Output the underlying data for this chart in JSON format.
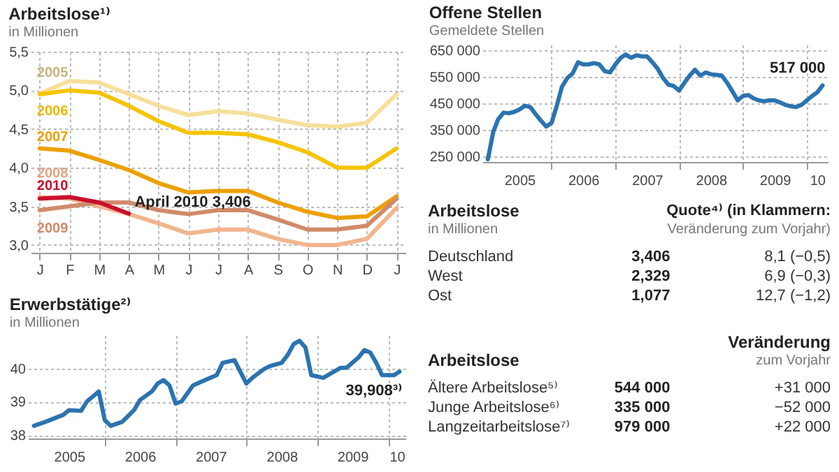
{
  "chart_data": [
    {
      "type": "line",
      "title": "Arbeitslose¹⁾",
      "subtitle": "in Millionen",
      "categories": [
        "J",
        "F",
        "M",
        "A",
        "M",
        "J",
        "J",
        "A",
        "S",
        "O",
        "N",
        "D",
        "J"
      ],
      "ylim": [
        2.9,
        5.5
      ],
      "yticks": [
        {
          "value": 3,
          "label": "3,0"
        },
        {
          "value": 3.5,
          "label": "3,5"
        },
        {
          "value": 4,
          "label": "4,0"
        },
        {
          "value": 4.5,
          "label": "4,5"
        },
        {
          "value": 5,
          "label": "5,0"
        },
        {
          "value": 5.5,
          "label": "5,5"
        }
      ],
      "grid": true,
      "marker": "none",
      "series": [
        {
          "name": "2005",
          "color": "#f6e09a",
          "values": [
            4.96,
            5.12,
            5.1,
            4.95,
            4.8,
            4.68,
            4.73,
            4.7,
            4.62,
            4.55,
            4.53,
            4.58,
            4.95
          ]
        },
        {
          "name": "2006",
          "color": "#f5c400",
          "values": [
            4.95,
            5.0,
            4.97,
            4.8,
            4.6,
            4.45,
            4.45,
            4.43,
            4.33,
            4.2,
            4.0,
            4.0,
            4.25
          ]
        },
        {
          "name": "2007",
          "color": "#eca000",
          "values": [
            4.25,
            4.22,
            4.1,
            3.97,
            3.8,
            3.68,
            3.7,
            3.7,
            3.55,
            3.43,
            3.35,
            3.37,
            3.63
          ]
        },
        {
          "name": "2008",
          "color": "#f2b58e",
          "values": [
            3.62,
            3.6,
            3.5,
            3.4,
            3.28,
            3.15,
            3.2,
            3.2,
            3.08,
            3.0,
            3.0,
            3.08,
            3.48
          ]
        },
        {
          "name": "2009",
          "color": "#cf8b6a",
          "values": [
            3.45,
            3.5,
            3.55,
            3.55,
            3.45,
            3.4,
            3.45,
            3.45,
            3.33,
            3.2,
            3.2,
            3.25,
            3.6
          ]
        },
        {
          "name": "2010",
          "color": "#c8102e",
          "values": [
            3.6,
            3.62,
            3.55,
            3.406,
            null,
            null,
            null,
            null,
            null,
            null,
            null,
            null,
            null
          ]
        }
      ],
      "annotations": [
        {
          "text": "April 2010 3,406",
          "x": "A",
          "y": 3.406
        }
      ]
    },
    {
      "type": "line",
      "title": "Erwerbstätige²⁾",
      "subtitle": "in Millionen",
      "xlim": [
        "2004-12",
        "2010-04"
      ],
      "ylim": [
        37.9,
        41.0
      ],
      "yticks": [
        38,
        39,
        40
      ],
      "grid": true,
      "marker": "none",
      "xticks": [
        {
          "value": "2005-07",
          "label": "2005"
        },
        {
          "value": "2006-01",
          "label": null
        },
        {
          "value": "2006-07",
          "label": "2006"
        },
        {
          "value": "2007-01",
          "label": null
        },
        {
          "value": "2007-07",
          "label": "2007"
        },
        {
          "value": "2008-01",
          "label": null
        },
        {
          "value": "2008-07",
          "label": "2008"
        },
        {
          "value": "2009-01",
          "label": null
        },
        {
          "value": "2009-07",
          "label": "2009"
        },
        {
          "value": "2010-01",
          "label": null
        },
        {
          "value": "2010-02-15",
          "label": "10"
        }
      ],
      "x": [
        "2005-01",
        "2005-03",
        "2005-06",
        "2005-07",
        "2005-09",
        "2005-10",
        "2005-12",
        "2006-01",
        "2006-02",
        "2006-04",
        "2006-06",
        "2006-07",
        "2006-09",
        "2006-10",
        "2006-11",
        "2006-12",
        "2007-01",
        "2007-02",
        "2007-04",
        "2007-06",
        "2007-08",
        "2007-09",
        "2007-11",
        "2008-01",
        "2008-02",
        "2008-04",
        "2008-05",
        "2008-07",
        "2008-08",
        "2008-09",
        "2008-10",
        "2008-11",
        "2008-12",
        "2009-02",
        "2009-04",
        "2009-05",
        "2009-06",
        "2009-08",
        "2009-09",
        "2009-10",
        "2009-11",
        "2009-12",
        "2010-02",
        "2010-03"
      ],
      "series": [
        {
          "color": "#2b73b0",
          "values": [
            38.28,
            38.4,
            38.61,
            38.75,
            38.73,
            39.01,
            39.31,
            38.45,
            38.28,
            38.4,
            38.75,
            39.05,
            39.31,
            39.55,
            39.65,
            39.49,
            38.95,
            39.01,
            39.49,
            39.65,
            39.8,
            40.17,
            40.25,
            39.55,
            39.72,
            39.98,
            40.07,
            40.17,
            40.4,
            40.73,
            40.83,
            40.63,
            39.8,
            39.72,
            39.92,
            40.02,
            40.02,
            40.33,
            40.55,
            40.48,
            40.17,
            39.8,
            39.8,
            39.908
          ]
        }
      ],
      "annotations": [
        {
          "text": "39,908³⁾",
          "x": "2010-03",
          "y": 39.908
        }
      ]
    },
    {
      "type": "line",
      "title": "Offene Stellen",
      "subtitle": "Gemeldete Stellen",
      "xlim": [
        "2004-12",
        "2010-05"
      ],
      "ylim": [
        230000,
        670000
      ],
      "yticks": [
        {
          "value": 250000,
          "label": "250 000"
        },
        {
          "value": 350000,
          "label": "350 000"
        },
        {
          "value": 450000,
          "label": "450 000"
        },
        {
          "value": 550000,
          "label": "550 000"
        },
        {
          "value": 650000,
          "label": "650 000"
        }
      ],
      "grid": true,
      "marker": "none",
      "xticks": [
        {
          "value": "2005-07",
          "label": "2005"
        },
        {
          "value": "2006-01",
          "label": null
        },
        {
          "value": "2006-07",
          "label": "2006"
        },
        {
          "value": "2007-01",
          "label": null
        },
        {
          "value": "2007-07",
          "label": "2007"
        },
        {
          "value": "2008-01",
          "label": null
        },
        {
          "value": "2008-07",
          "label": "2008"
        },
        {
          "value": "2009-01",
          "label": null
        },
        {
          "value": "2009-07",
          "label": "2009"
        },
        {
          "value": "2010-01",
          "label": null
        },
        {
          "value": "2010-03",
          "label": "10"
        }
      ],
      "x": [
        "2005-01",
        "2005-02",
        "2005-03",
        "2005-04",
        "2005-05",
        "2005-06",
        "2005-07",
        "2005-08",
        "2005-09",
        "2005-10",
        "2005-11",
        "2005-12",
        "2006-01",
        "2006-02",
        "2006-03",
        "2006-04",
        "2006-05",
        "2006-06",
        "2006-07",
        "2006-08",
        "2006-09",
        "2006-10",
        "2006-11",
        "2006-12",
        "2007-01",
        "2007-02",
        "2007-03",
        "2007-04",
        "2007-05",
        "2007-06",
        "2007-07",
        "2007-08",
        "2007-09",
        "2007-10",
        "2007-11",
        "2007-12",
        "2008-01",
        "2008-02",
        "2008-03",
        "2008-04",
        "2008-05",
        "2008-06",
        "2008-07",
        "2008-08",
        "2008-09",
        "2008-10",
        "2008-11",
        "2008-12",
        "2009-01",
        "2009-02",
        "2009-03",
        "2009-04",
        "2009-05",
        "2009-06",
        "2009-07",
        "2009-08",
        "2009-09",
        "2009-10",
        "2009-11",
        "2009-12",
        "2010-01",
        "2010-02",
        "2010-03",
        "2010-04"
      ],
      "series": [
        {
          "color": "#2b73b0",
          "values": [
            240000,
            343000,
            390000,
            415000,
            413000,
            418000,
            427000,
            441000,
            436000,
            410000,
            385000,
            363000,
            377000,
            444000,
            512000,
            545000,
            562000,
            604000,
            596000,
            596000,
            601000,
            596000,
            571000,
            566000,
            596000,
            621000,
            633000,
            621000,
            630000,
            626000,
            626000,
            604000,
            579000,
            545000,
            520000,
            515000,
            498000,
            528000,
            554000,
            576000,
            554000,
            566000,
            559000,
            557000,
            554000,
            528000,
            495000,
            461000,
            478000,
            481000,
            469000,
            461000,
            458000,
            461000,
            461000,
            453000,
            444000,
            439000,
            436000,
            444000,
            461000,
            478000,
            491000,
            517000
          ]
        }
      ],
      "annotations": [
        {
          "text": "517 000",
          "x": "2010-04",
          "y": 517000
        }
      ]
    },
    {
      "type": "other",
      "title": "Arbeitslose",
      "subtitle": "in Millionen",
      "annotations": [
        "Quote⁴⁾ (in Klammern:",
        "Veränderung zum Vorjahr)",
        "Deutschland",
        "3,406",
        "8,1 (−0,5)",
        "West",
        "2,329",
        "6,9 (−0,3)",
        "Ost",
        "1,077",
        "12,7 (−1,2)"
      ]
    },
    {
      "type": "other",
      "title": "Arbeitslose",
      "annotations": [
        "Veränderung",
        "zum Vorjahr",
        "Ältere Arbeitslose⁵⁾",
        "544 000",
        "+31 000",
        "Junge Arbeitslose⁶⁾",
        "335 000",
        "−52 000",
        "Langzeitarbeitslose⁷⁾",
        "979 000",
        "+22 000"
      ]
    }
  ]
}
